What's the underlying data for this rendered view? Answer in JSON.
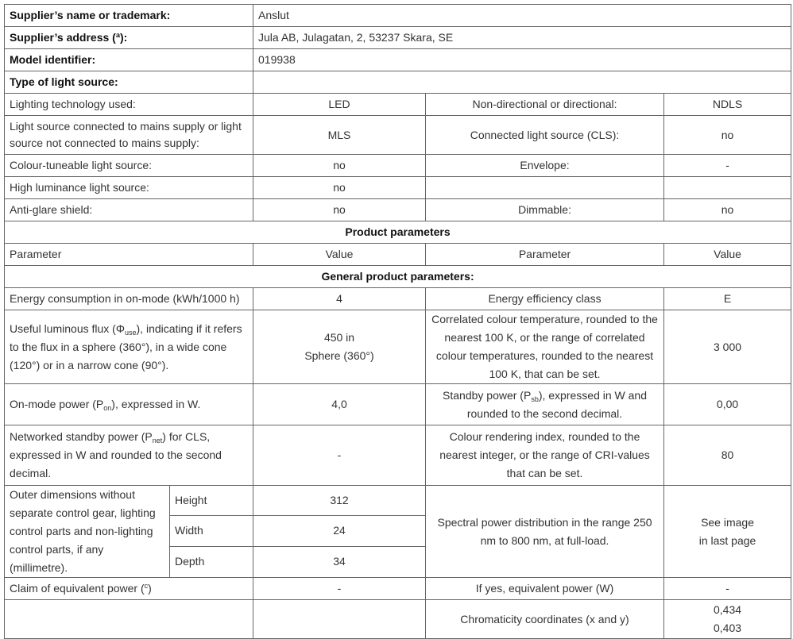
{
  "supplier": {
    "name_label": "Supplier’s name or trademark:",
    "name_value": "Anslut",
    "address_label": "Supplier’s address (ª):",
    "address_value": "Jula AB, Julagatan, 2, 53237 Skara, SE",
    "model_label": "Model identifier:",
    "model_value": "019938",
    "type_label": "Type of light source:"
  },
  "light_source": [
    {
      "label": "Lighting technology used:",
      "value": "LED",
      "label2": "Non-directional or directional:",
      "value2": "NDLS"
    },
    {
      "label": "Light source connected to mains supply or light source not connected to mains supply:",
      "value": "MLS",
      "label2": "Connected light source (CLS):",
      "value2": "no"
    },
    {
      "label": "Colour-tuneable light source:",
      "value": "no",
      "label2": "Envelope:",
      "value2": "-"
    },
    {
      "label": "High luminance light source:",
      "value": "no",
      "label2": "",
      "value2": ""
    },
    {
      "label": "Anti-glare shield:",
      "value": "no",
      "label2": "Dimmable:",
      "value2": "no"
    }
  ],
  "product_parameters_title": "Product parameters",
  "headers": {
    "parameter": "Parameter",
    "value": "Value"
  },
  "general_title": "General product parameters:",
  "general": {
    "energy_label": "Energy consumption in on-mode (kWh/1000 h)",
    "energy_value": "4",
    "class_label": "Energy efficiency class",
    "class_value": "E",
    "flux_label_a": "Useful luminous flux (Φ",
    "flux_label_sub": "use",
    "flux_label_b": "), indicating if it refers to the flux in a sphere (360°), in a wide cone (120°) or in a narrow cone (90°).",
    "flux_value_1": "450 in",
    "flux_value_2": "Sphere (360°)",
    "cct_label": "Correlated colour temperature, rounded to the nearest 100 K, or the range of correlated colour temperatures, rounded to the nearest 100 K, that can be set.",
    "cct_value": "3 000",
    "onmode_label_a": "On-mode power (P",
    "onmode_label_sub": "on",
    "onmode_label_b": "), expressed in W.",
    "onmode_value": "4,0",
    "standby_label_a": "Standby power (P",
    "standby_label_sub": "sb",
    "standby_label_b": "), expressed in W and rounded to the second decimal.",
    "standby_value": "0,00",
    "net_label_a": "Networked standby power (P",
    "net_label_sub": "net",
    "net_label_b": ") for CLS, expressed in W and rounded to the second decimal.",
    "net_value": "-",
    "cri_label": "Colour rendering index, rounded to the nearest integer, or the range of CRI-values that can be set.",
    "cri_value": "80",
    "dims_label": "Outer dimensions without separate control gear, lighting control parts and non-lighting control parts, if any (millimetre).",
    "dims": [
      {
        "label": "Height",
        "value": "312"
      },
      {
        "label": "Width",
        "value": "24"
      },
      {
        "label": "Depth",
        "value": "34"
      }
    ],
    "spd_label": "Spectral power distribution in the range 250 nm to 800 nm, at full-load.",
    "spd_value_1": "See image",
    "spd_value_2": "in last page",
    "claim_label_a": "Claim of equivalent power (",
    "claim_label_sup": "c",
    "claim_label_b": ")",
    "claim_value": "-",
    "equiv_label": "If yes, equivalent power (W)",
    "equiv_value": "-",
    "chroma_label": "Chromaticity coordinates (x and y)",
    "chroma_x": "0,434",
    "chroma_y": "0,403"
  }
}
